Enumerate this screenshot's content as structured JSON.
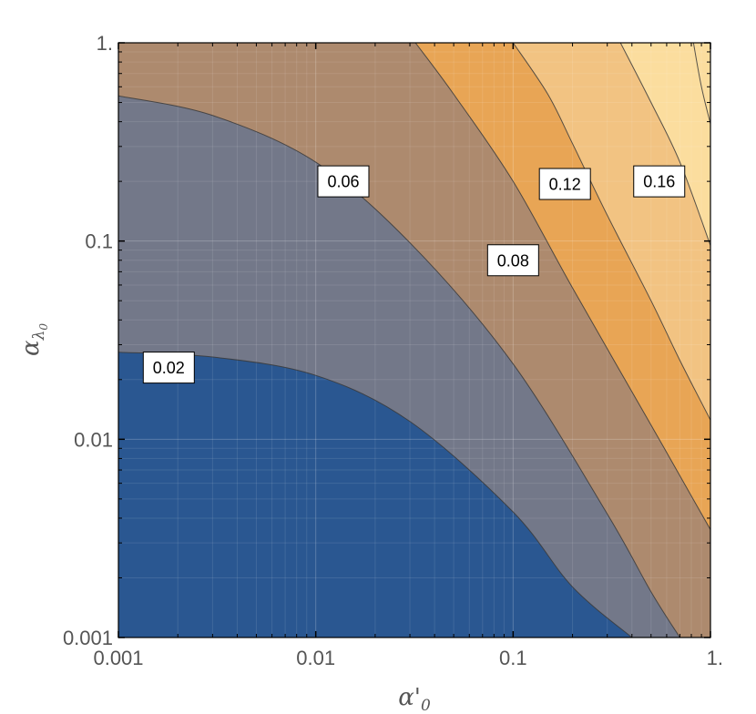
{
  "chart_data": {
    "type": "contour",
    "x_scale": "log",
    "y_scale": "log",
    "xlim": [
      0.001,
      1
    ],
    "ylim": [
      0.001,
      1
    ],
    "xlabel": "α'0",
    "ylabel": "αλ0",
    "x_ticks": [
      {
        "value": 0.001,
        "label": "0.001"
      },
      {
        "value": 0.01,
        "label": "0.01"
      },
      {
        "value": 0.1,
        "label": "0.1"
      },
      {
        "value": 1,
        "label": "1."
      }
    ],
    "y_ticks": [
      {
        "value": 0.001,
        "label": "0.001"
      },
      {
        "value": 0.01,
        "label": "0.01"
      },
      {
        "value": 0.1,
        "label": "0.1"
      },
      {
        "value": 1,
        "label": "1."
      }
    ],
    "grid": true,
    "colors": {
      "band_0_02": "#2a5791",
      "band_02_06": "#737889",
      "band_06_08": "#ad8a6e",
      "band_08_12": "#e8a555",
      "band_12_16": "#f2c382",
      "band_16_up": "#fbdd9e",
      "contour_line": "#3a3a3a",
      "frame": "#000000"
    },
    "bands": [
      {
        "name": "band_0_02",
        "color": "#2a5791"
      },
      {
        "name": "band_02_06",
        "color": "#737889"
      },
      {
        "name": "band_06_08",
        "color": "#ad8a6e"
      },
      {
        "name": "band_08_12",
        "color": "#e8a555"
      },
      {
        "name": "band_12_16",
        "color": "#f2c382"
      },
      {
        "name": "band_16_up",
        "color": "#fbdd9e"
      }
    ],
    "contours": [
      {
        "level": 0.02,
        "label": "0.02",
        "label_at": {
          "x": 0.0018,
          "y": 0.023
        },
        "points": [
          [
            0.001,
            0.0275
          ],
          [
            0.003,
            0.026
          ],
          [
            0.01,
            0.021
          ],
          [
            0.03,
            0.0123
          ],
          [
            0.1,
            0.0043
          ],
          [
            0.2,
            0.0018
          ],
          [
            0.4,
            0.001
          ]
        ]
      },
      {
        "level": 0.06,
        "label": "0.06",
        "label_at": {
          "x": 0.0138,
          "y": 0.2
        },
        "points": [
          [
            0.001,
            0.54
          ],
          [
            0.003,
            0.43
          ],
          [
            0.01,
            0.25
          ],
          [
            0.03,
            0.098
          ],
          [
            0.1,
            0.024
          ],
          [
            0.3,
            0.0042
          ],
          [
            0.5,
            0.0017
          ],
          [
            0.7,
            0.001
          ]
        ]
      },
      {
        "level": 0.08,
        "label": "0.08",
        "label_at": {
          "x": 0.1,
          "y": 0.08
        },
        "points": [
          [
            0.032,
            1.0
          ],
          [
            0.05,
            0.55
          ],
          [
            0.1,
            0.2
          ],
          [
            0.2,
            0.058
          ],
          [
            0.5,
            0.0118
          ],
          [
            1.0,
            0.0035
          ]
        ]
      },
      {
        "level": 0.12,
        "label": "0.12",
        "label_at": {
          "x": 0.183,
          "y": 0.194
        },
        "points": [
          [
            0.1,
            1.0
          ],
          [
            0.15,
            0.55
          ],
          [
            0.2,
            0.31
          ],
          [
            0.3,
            0.135
          ],
          [
            0.5,
            0.05
          ],
          [
            0.7,
            0.025
          ],
          [
            1.0,
            0.0125
          ]
        ]
      },
      {
        "level": 0.16,
        "label": "0.16",
        "label_at": {
          "x": 0.55,
          "y": 0.2
        },
        "points": [
          [
            0.35,
            1.0
          ],
          [
            0.5,
            0.5
          ],
          [
            0.7,
            0.25
          ],
          [
            1.0,
            0.095
          ]
        ]
      },
      {
        "level": 0.2,
        "label": "",
        "points": [
          [
            0.82,
            1.0
          ],
          [
            0.9,
            0.6
          ],
          [
            1.0,
            0.39
          ]
        ]
      }
    ]
  }
}
